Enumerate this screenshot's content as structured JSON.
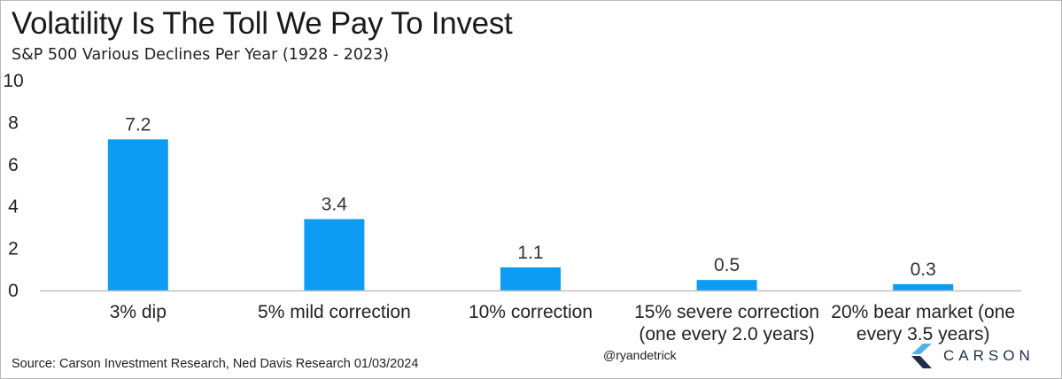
{
  "title": "Volatility Is The Toll We Pay To Invest",
  "subtitle": "S&P 500 Various Declines Per Year (1928 - 2023)",
  "source": "Source: Carson Investment Research, Ned Davis Research 01/03/2024",
  "handle": "@ryandetrick",
  "brand": {
    "name": "CARSON"
  },
  "colors": {
    "bar": "#0d9cf3",
    "axis": "#bfbfbf",
    "logo_light": "#4fb3e8",
    "logo_dark": "#1f2f4a"
  },
  "chart_data": {
    "type": "bar",
    "categories": [
      [
        "3% dip"
      ],
      [
        "5% mild correction"
      ],
      [
        "10% correction"
      ],
      [
        "15% severe correction",
        "(one every 2.0 years)"
      ],
      [
        "20% bear market (one",
        "every 3.5  years)"
      ]
    ],
    "values": [
      7.2,
      3.4,
      1.1,
      0.5,
      0.3
    ],
    "value_labels": [
      "7.2",
      "3.4",
      "1.1",
      "0.5",
      "0.3"
    ],
    "title": "Volatility Is The Toll We Pay To Invest",
    "subtitle": "S&P 500 Various Declines Per Year (1928 - 2023)",
    "ylim": [
      0,
      10
    ],
    "yticks": [
      0,
      2,
      4,
      6,
      8,
      10
    ],
    "grid": false,
    "legend": "none"
  }
}
